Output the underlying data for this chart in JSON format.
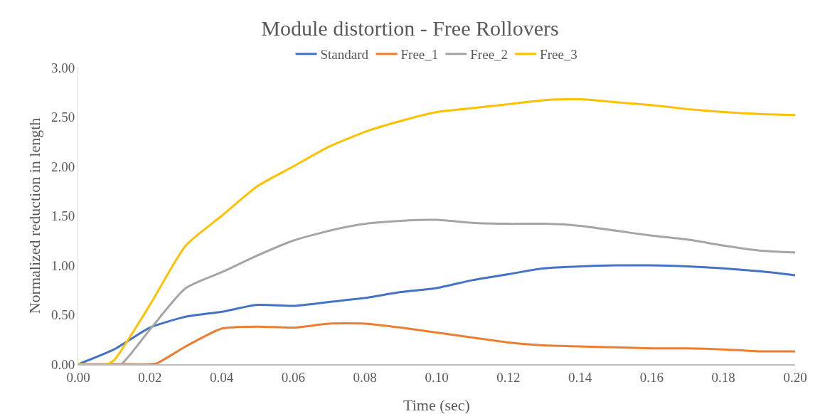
{
  "chart_data": {
    "type": "line",
    "title": "Module distortion - Free Rollovers",
    "xlabel": "Time (sec)",
    "ylabel": "Normalized reduction in length",
    "xlim": [
      0,
      0.2
    ],
    "ylim": [
      0,
      3
    ],
    "xticks": [
      {
        "value": 0,
        "label": "0.00"
      },
      {
        "value": 0.02,
        "label": "0.02"
      },
      {
        "value": 0.04,
        "label": "0.04"
      },
      {
        "value": 0.06,
        "label": "0.06"
      },
      {
        "value": 0.08,
        "label": "0.08"
      },
      {
        "value": 0.1,
        "label": "0.10"
      },
      {
        "value": 0.12,
        "label": "0.12"
      },
      {
        "value": 0.14,
        "label": "0.14"
      },
      {
        "value": 0.16,
        "label": "0.16"
      },
      {
        "value": 0.18,
        "label": "0.18"
      },
      {
        "value": 0.2,
        "label": "0.20"
      }
    ],
    "yticks": [
      {
        "value": 0,
        "label": "0.00"
      },
      {
        "value": 0.5,
        "label": "0.50"
      },
      {
        "value": 1,
        "label": "1.00"
      },
      {
        "value": 1.5,
        "label": "1.50"
      },
      {
        "value": 2,
        "label": "2.00"
      },
      {
        "value": 2.5,
        "label": "2.50"
      },
      {
        "value": 3,
        "label": "3.00"
      }
    ],
    "grid": false,
    "legend": "top",
    "marker": "none",
    "line_style": "solid",
    "x": [
      0,
      0.01,
      0.02,
      0.03,
      0.04,
      0.05,
      0.06,
      0.07,
      0.08,
      0.09,
      0.1,
      0.11,
      0.12,
      0.13,
      0.14,
      0.15,
      0.16,
      0.17,
      0.18,
      0.19,
      0.2
    ],
    "series": [
      {
        "name": "Standard",
        "color": "#4472c4",
        "values": [
          0,
          0.15,
          0.37,
          0.48,
          0.53,
          0.6,
          0.59,
          0.63,
          0.67,
          0.73,
          0.77,
          0.85,
          0.91,
          0.97,
          0.99,
          1.0,
          1.0,
          0.99,
          0.97,
          0.94,
          0.9
        ]
      },
      {
        "name": "Free_1",
        "color": "#ed7d31",
        "x": [
          0,
          0.01,
          0.02,
          0.022,
          0.03,
          0.04,
          0.05,
          0.06,
          0.07,
          0.08,
          0.09,
          0.1,
          0.11,
          0.12,
          0.13,
          0.14,
          0.15,
          0.16,
          0.17,
          0.18,
          0.19,
          0.2
        ],
        "values": [
          0,
          0,
          0,
          0.01,
          0.18,
          0.36,
          0.38,
          0.37,
          0.41,
          0.41,
          0.37,
          0.32,
          0.27,
          0.22,
          0.19,
          0.18,
          0.17,
          0.16,
          0.16,
          0.15,
          0.13,
          0.13
        ]
      },
      {
        "name": "Free_2",
        "color": "#a5a5a5",
        "x": [
          0,
          0.01,
          0.012,
          0.02,
          0.03,
          0.04,
          0.05,
          0.06,
          0.07,
          0.08,
          0.09,
          0.1,
          0.11,
          0.12,
          0.13,
          0.14,
          0.15,
          0.16,
          0.17,
          0.18,
          0.19,
          0.2
        ],
        "values": [
          0,
          0,
          0,
          0.35,
          0.77,
          0.93,
          1.1,
          1.25,
          1.35,
          1.42,
          1.45,
          1.46,
          1.43,
          1.42,
          1.42,
          1.4,
          1.35,
          1.3,
          1.26,
          1.2,
          1.15,
          1.13
        ]
      },
      {
        "name": "Free_3",
        "color": "#ffc000",
        "x": [
          0,
          0.008,
          0.01,
          0.02,
          0.03,
          0.04,
          0.05,
          0.06,
          0.07,
          0.08,
          0.09,
          0.1,
          0.11,
          0.12,
          0.13,
          0.14,
          0.15,
          0.16,
          0.17,
          0.18,
          0.19,
          0.2
        ],
        "values": [
          0,
          0,
          0.04,
          0.6,
          1.2,
          1.5,
          1.8,
          2.0,
          2.2,
          2.35,
          2.46,
          2.55,
          2.59,
          2.63,
          2.67,
          2.68,
          2.65,
          2.62,
          2.58,
          2.55,
          2.53,
          2.52
        ]
      }
    ]
  }
}
